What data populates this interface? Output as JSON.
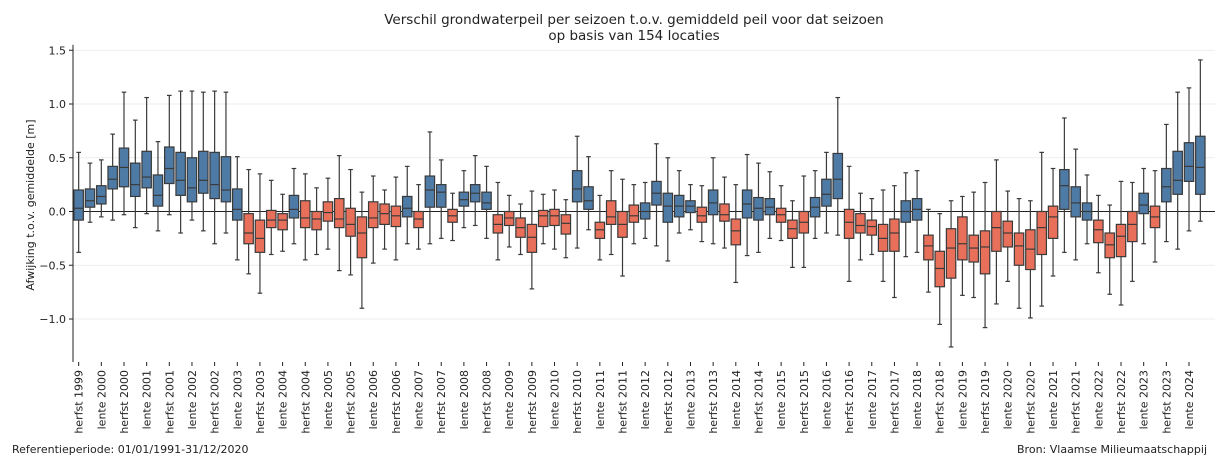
{
  "chart_data": {
    "type": "box",
    "title_lines": [
      "Verschil grondwaterpeil per seizoen t.o.v. gemiddeld peil voor dat seizoen",
      "op basis van 154 locaties"
    ],
    "ylabel": "Afwijking t.o.v. gemiddelde [m]",
    "ylim": [
      -1.4,
      1.55
    ],
    "yticks": [
      -1.0,
      -0.5,
      0.0,
      0.5,
      1.0,
      1.5
    ],
    "ytick_labels": [
      "−1.0",
      "−0.5",
      "0.0",
      "0.5",
      "1.0",
      "1.5"
    ],
    "grid": "horizontal",
    "zero_line": true,
    "colors": {
      "positive": "#4e7aa6",
      "negative": "#e8705a"
    },
    "x_tick_labels": [
      "herfst 1999",
      "lente 2000",
      "herfst 2000",
      "lente 2001",
      "herfst 2001",
      "lente 2002",
      "herfst 2002",
      "lente 2003",
      "herfst 2003",
      "lente 2004",
      "herfst 2004",
      "lente 2005",
      "herfst 2005",
      "lente 2006",
      "herfst 2006",
      "lente 2007",
      "herfst 2007",
      "lente 2008",
      "herfst 2008",
      "lente 2009",
      "herfst 2009",
      "lente 2010",
      "herfst 2010",
      "lente 2011",
      "herfst 2011",
      "lente 2012",
      "herfst 2012",
      "lente 2013",
      "herfst 2013",
      "lente 2014",
      "herfst 2014",
      "lente 2015",
      "herfst 2015",
      "lente 2016",
      "herfst 2016",
      "lente 2017",
      "herfst 2017",
      "lente 2018",
      "herfst 2018",
      "lente 2019",
      "herfst 2019",
      "lente 2020",
      "herfst 2020",
      "lente 2021",
      "herfst 2021",
      "lente 2022",
      "herfst 2022",
      "lente 2023",
      "herfst 2023",
      "lente 2024"
    ],
    "boxes": [
      {
        "min": -0.38,
        "q1": -0.08,
        "median": 0.03,
        "q3": 0.2,
        "max": 0.55
      },
      {
        "min": -0.1,
        "q1": 0.04,
        "median": 0.1,
        "q3": 0.21,
        "max": 0.45
      },
      {
        "min": -0.05,
        "q1": 0.07,
        "median": 0.14,
        "q3": 0.24,
        "max": 0.48
      },
      {
        "min": -0.08,
        "q1": 0.21,
        "median": 0.3,
        "q3": 0.42,
        "max": 0.72
      },
      {
        "min": -0.03,
        "q1": 0.23,
        "median": 0.41,
        "q3": 0.59,
        "max": 1.11
      },
      {
        "min": -0.15,
        "q1": 0.14,
        "median": 0.25,
        "q3": 0.45,
        "max": 0.85
      },
      {
        "min": -0.02,
        "q1": 0.22,
        "median": 0.32,
        "q3": 0.56,
        "max": 1.06
      },
      {
        "min": -0.18,
        "q1": 0.05,
        "median": 0.15,
        "q3": 0.34,
        "max": 0.65
      },
      {
        "min": -0.03,
        "q1": 0.26,
        "median": 0.4,
        "q3": 0.6,
        "max": 1.08
      },
      {
        "min": -0.2,
        "q1": 0.15,
        "median": 0.29,
        "q3": 0.55,
        "max": 1.12
      },
      {
        "min": -0.08,
        "q1": 0.09,
        "median": 0.22,
        "q3": 0.5,
        "max": 1.12
      },
      {
        "min": -0.18,
        "q1": 0.17,
        "median": 0.29,
        "q3": 0.56,
        "max": 1.11
      },
      {
        "min": -0.3,
        "q1": 0.12,
        "median": 0.25,
        "q3": 0.55,
        "max": 1.12
      },
      {
        "min": -0.2,
        "q1": 0.09,
        "median": 0.2,
        "q3": 0.51,
        "max": 1.11
      },
      {
        "min": -0.45,
        "q1": -0.08,
        "median": 0.02,
        "q3": 0.21,
        "max": 0.51
      },
      {
        "min": -0.58,
        "q1": -0.3,
        "median": -0.2,
        "q3": -0.02,
        "max": 0.39
      },
      {
        "min": -0.76,
        "q1": -0.38,
        "median": -0.25,
        "q3": -0.08,
        "max": 0.35
      },
      {
        "min": -0.4,
        "q1": -0.15,
        "median": -0.08,
        "q3": 0.01,
        "max": 0.29
      },
      {
        "min": -0.37,
        "q1": -0.17,
        "median": -0.08,
        "q3": -0.02,
        "max": 0.16
      },
      {
        "min": -0.3,
        "q1": -0.06,
        "median": 0.02,
        "q3": 0.15,
        "max": 0.4
      },
      {
        "min": -0.45,
        "q1": -0.15,
        "median": -0.06,
        "q3": 0.1,
        "max": 0.35
      },
      {
        "min": -0.4,
        "q1": -0.17,
        "median": -0.07,
        "q3": 0.0,
        "max": 0.22
      },
      {
        "min": -0.35,
        "q1": -0.09,
        "median": -0.01,
        "q3": 0.09,
        "max": 0.31
      },
      {
        "min": -0.55,
        "q1": -0.15,
        "median": -0.07,
        "q3": 0.12,
        "max": 0.52
      },
      {
        "min": -0.59,
        "q1": -0.23,
        "median": -0.12,
        "q3": 0.03,
        "max": 0.39
      },
      {
        "min": -0.9,
        "q1": -0.43,
        "median": -0.2,
        "q3": -0.05,
        "max": 0.18
      },
      {
        "min": -0.48,
        "q1": -0.15,
        "median": -0.06,
        "q3": 0.09,
        "max": 0.33
      },
      {
        "min": -0.35,
        "q1": -0.12,
        "median": -0.02,
        "q3": 0.07,
        "max": 0.2
      },
      {
        "min": -0.45,
        "q1": -0.14,
        "median": -0.04,
        "q3": 0.05,
        "max": 0.32
      },
      {
        "min": -0.3,
        "q1": -0.05,
        "median": 0.03,
        "q3": 0.14,
        "max": 0.42
      },
      {
        "min": -0.35,
        "q1": -0.15,
        "median": -0.07,
        "q3": 0.0,
        "max": 0.25
      },
      {
        "min": -0.3,
        "q1": 0.04,
        "median": 0.2,
        "q3": 0.33,
        "max": 0.74
      },
      {
        "min": -0.25,
        "q1": 0.04,
        "median": 0.18,
        "q3": 0.25,
        "max": 0.48
      },
      {
        "min": -0.27,
        "q1": -0.1,
        "median": -0.04,
        "q3": 0.02,
        "max": 0.17
      },
      {
        "min": -0.15,
        "q1": 0.05,
        "median": 0.11,
        "q3": 0.18,
        "max": 0.38
      },
      {
        "min": -0.13,
        "q1": 0.09,
        "median": 0.17,
        "q3": 0.25,
        "max": 0.52
      },
      {
        "min": -0.25,
        "q1": 0.02,
        "median": 0.08,
        "q3": 0.18,
        "max": 0.42
      },
      {
        "min": -0.45,
        "q1": -0.2,
        "median": -0.12,
        "q3": -0.03,
        "max": 0.27
      },
      {
        "min": -0.33,
        "q1": -0.13,
        "median": -0.06,
        "q3": 0.0,
        "max": 0.15
      },
      {
        "min": -0.4,
        "q1": -0.24,
        "median": -0.15,
        "q3": -0.06,
        "max": 0.07
      },
      {
        "min": -0.72,
        "q1": -0.38,
        "median": -0.24,
        "q3": -0.12,
        "max": 0.19
      },
      {
        "min": -0.3,
        "q1": -0.14,
        "median": -0.04,
        "q3": 0.01,
        "max": 0.16
      },
      {
        "min": -0.35,
        "q1": -0.13,
        "median": -0.04,
        "q3": 0.02,
        "max": 0.2
      },
      {
        "min": -0.43,
        "q1": -0.21,
        "median": -0.11,
        "q3": -0.03,
        "max": 0.11
      },
      {
        "min": -0.34,
        "q1": 0.09,
        "median": 0.21,
        "q3": 0.38,
        "max": 0.7
      },
      {
        "min": -0.17,
        "q1": 0.02,
        "median": 0.1,
        "q3": 0.23,
        "max": 0.51
      },
      {
        "min": -0.45,
        "q1": -0.25,
        "median": -0.17,
        "q3": -0.1,
        "max": 0.15
      },
      {
        "min": -0.4,
        "q1": -0.12,
        "median": -0.05,
        "q3": 0.1,
        "max": 0.38
      },
      {
        "min": -0.6,
        "q1": -0.24,
        "median": -0.12,
        "q3": 0.0,
        "max": 0.3
      },
      {
        "min": -0.3,
        "q1": -0.1,
        "median": -0.04,
        "q3": 0.06,
        "max": 0.25
      },
      {
        "min": -0.25,
        "q1": -0.07,
        "median": 0.0,
        "q3": 0.08,
        "max": 0.27
      },
      {
        "min": -0.32,
        "q1": 0.06,
        "median": 0.17,
        "q3": 0.28,
        "max": 0.63
      },
      {
        "min": -0.46,
        "q1": -0.1,
        "median": 0.05,
        "q3": 0.17,
        "max": 0.5
      },
      {
        "min": -0.2,
        "q1": -0.05,
        "median": 0.05,
        "q3": 0.15,
        "max": 0.38
      },
      {
        "min": -0.17,
        "q1": -0.01,
        "median": 0.05,
        "q3": 0.1,
        "max": 0.25
      },
      {
        "min": -0.28,
        "q1": -0.1,
        "median": -0.04,
        "q3": 0.04,
        "max": 0.24
      },
      {
        "min": -0.3,
        "q1": -0.03,
        "median": 0.08,
        "q3": 0.2,
        "max": 0.5
      },
      {
        "min": -0.34,
        "q1": -0.09,
        "median": -0.03,
        "q3": 0.07,
        "max": 0.32
      },
      {
        "min": -0.66,
        "q1": -0.31,
        "median": -0.18,
        "q3": -0.07,
        "max": 0.25
      },
      {
        "min": -0.41,
        "q1": -0.06,
        "median": 0.07,
        "q3": 0.2,
        "max": 0.53
      },
      {
        "min": -0.38,
        "q1": -0.08,
        "median": 0.03,
        "q3": 0.13,
        "max": 0.45
      },
      {
        "min": -0.25,
        "q1": -0.03,
        "median": 0.04,
        "q3": 0.12,
        "max": 0.37
      },
      {
        "min": -0.27,
        "q1": -0.1,
        "median": -0.03,
        "q3": 0.03,
        "max": 0.24
      },
      {
        "min": -0.52,
        "q1": -0.25,
        "median": -0.16,
        "q3": -0.08,
        "max": 0.1
      },
      {
        "min": -0.52,
        "q1": -0.2,
        "median": -0.1,
        "q3": 0.0,
        "max": 0.33
      },
      {
        "min": -0.25,
        "q1": -0.05,
        "median": 0.04,
        "q3": 0.13,
        "max": 0.38
      },
      {
        "min": -0.2,
        "q1": 0.05,
        "median": 0.16,
        "q3": 0.3,
        "max": 0.55
      },
      {
        "min": -0.22,
        "q1": 0.12,
        "median": 0.3,
        "q3": 0.54,
        "max": 1.06
      },
      {
        "min": -0.65,
        "q1": -0.25,
        "median": -0.1,
        "q3": 0.02,
        "max": 0.42
      },
      {
        "min": -0.45,
        "q1": -0.2,
        "median": -0.13,
        "q3": -0.02,
        "max": 0.17
      },
      {
        "min": -0.4,
        "q1": -0.22,
        "median": -0.14,
        "q3": -0.08,
        "max": 0.12
      },
      {
        "min": -0.65,
        "q1": -0.37,
        "median": -0.25,
        "q3": -0.12,
        "max": 0.2
      },
      {
        "min": -0.8,
        "q1": -0.37,
        "median": -0.2,
        "q3": -0.07,
        "max": 0.24
      },
      {
        "min": -0.42,
        "q1": -0.1,
        "median": 0.0,
        "q3": 0.1,
        "max": 0.36
      },
      {
        "min": -0.38,
        "q1": -0.08,
        "median": 0.02,
        "q3": 0.12,
        "max": 0.38
      },
      {
        "min": -0.75,
        "q1": -0.45,
        "median": -0.32,
        "q3": -0.22,
        "max": 0.02
      },
      {
        "min": -1.05,
        "q1": -0.7,
        "median": -0.53,
        "q3": -0.37,
        "max": -0.02
      },
      {
        "min": -1.26,
        "q1": -0.62,
        "median": -0.34,
        "q3": -0.16,
        "max": 0.1
      },
      {
        "min": -0.78,
        "q1": -0.45,
        "median": -0.3,
        "q3": -0.05,
        "max": 0.14
      },
      {
        "min": -0.8,
        "q1": -0.47,
        "median": -0.34,
        "q3": -0.22,
        "max": 0.18
      },
      {
        "min": -1.08,
        "q1": -0.58,
        "median": -0.33,
        "q3": -0.18,
        "max": 0.27
      },
      {
        "min": -0.86,
        "q1": -0.37,
        "median": -0.15,
        "q3": 0.0,
        "max": 0.48
      },
      {
        "min": -0.65,
        "q1": -0.33,
        "median": -0.2,
        "q3": -0.09,
        "max": 0.19
      },
      {
        "min": -0.9,
        "q1": -0.5,
        "median": -0.32,
        "q3": -0.2,
        "max": 0.12
      },
      {
        "min": -0.99,
        "q1": -0.54,
        "median": -0.35,
        "q3": -0.17,
        "max": 0.1
      },
      {
        "min": -0.88,
        "q1": -0.4,
        "median": -0.15,
        "q3": 0.0,
        "max": 0.55
      },
      {
        "min": -0.6,
        "q1": -0.25,
        "median": -0.05,
        "q3": 0.05,
        "max": 0.4
      },
      {
        "min": -0.38,
        "q1": 0.02,
        "median": 0.24,
        "q3": 0.39,
        "max": 0.87
      },
      {
        "min": -0.45,
        "q1": -0.05,
        "median": 0.08,
        "q3": 0.23,
        "max": 0.58
      },
      {
        "min": -0.3,
        "q1": -0.08,
        "median": 0.0,
        "q3": 0.08,
        "max": 0.34
      },
      {
        "min": -0.57,
        "q1": -0.29,
        "median": -0.17,
        "q3": -0.08,
        "max": 0.15
      },
      {
        "min": -0.77,
        "q1": -0.43,
        "median": -0.31,
        "q3": -0.2,
        "max": 0.06
      },
      {
        "min": -0.87,
        "q1": -0.42,
        "median": -0.23,
        "q3": -0.12,
        "max": 0.28
      },
      {
        "min": -0.65,
        "q1": -0.28,
        "median": -0.12,
        "q3": 0.0,
        "max": 0.27
      },
      {
        "min": -0.3,
        "q1": -0.02,
        "median": 0.06,
        "q3": 0.17,
        "max": 0.4
      },
      {
        "min": -0.47,
        "q1": -0.15,
        "median": -0.05,
        "q3": 0.05,
        "max": 0.38
      },
      {
        "min": -0.28,
        "q1": 0.09,
        "median": 0.23,
        "q3": 0.4,
        "max": 0.81
      },
      {
        "min": -0.35,
        "q1": 0.16,
        "median": 0.29,
        "q3": 0.56,
        "max": 1.11
      },
      {
        "min": -0.18,
        "q1": 0.28,
        "median": 0.42,
        "q3": 0.64,
        "max": 1.15
      },
      {
        "min": -0.09,
        "q1": 0.16,
        "median": 0.41,
        "q3": 0.7,
        "max": 1.41
      }
    ]
  },
  "footer": {
    "left": "Referentieperiode: 01/01/1991-31/12/2020",
    "right": "Bron: Vlaamse Milieumaatschappij"
  }
}
